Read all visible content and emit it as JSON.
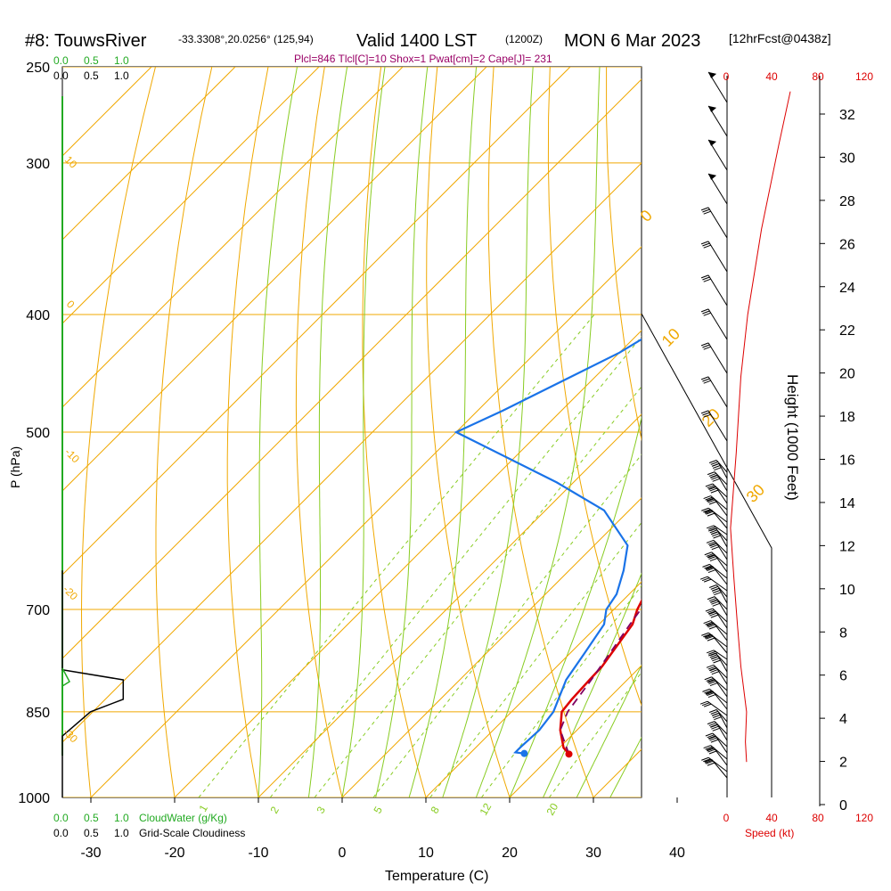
{
  "header": {
    "station": "#8: TouwsRiver",
    "coords": "-33.3308°,20.0256° (125,94)",
    "valid": "Valid 1400 LST",
    "zulu": "(1200Z)",
    "date": "MON 6 Mar 2023",
    "forecast": "[12hrFcst@0438z]",
    "indices": "Plcl=846 Tlcl[C]=10 Shox=1 Pwat[cm]=2 Cape[J]= 231"
  },
  "cloud_scale": {
    "water_ticks": [
      "0.0",
      "0.5",
      "1.0"
    ],
    "cloudiness_ticks": [
      "0.0",
      "0.5",
      "1.0"
    ],
    "water_label": "CloudWater (g/Kg)",
    "cloudiness_label": "Grid-Scale Cloudiness"
  },
  "speed_scale": {
    "ticks": [
      "0",
      "40",
      "80",
      "120"
    ],
    "label": "Speed (kt)"
  },
  "colors": {
    "temperature": "#dd0000",
    "dewpoint": "#1a73e8",
    "parcel": "#800060",
    "isotherm": "#f0a800",
    "dry_adiabat": "#f0a800",
    "moist_adiabat": "#88cc22",
    "mixing_ratio": "#88cc22",
    "cloud_water": "#22aa22",
    "speed": "#dd0000"
  },
  "chart_data": {
    "type": "line",
    "xlabel": "Temperature (C)",
    "ylabel": "P (hPa)",
    "y2label": "Height (1000 Feet)",
    "x_ticks": [
      -30,
      -20,
      -10,
      0,
      10,
      20,
      30,
      40
    ],
    "y_ticks": [
      250,
      300,
      400,
      500,
      700,
      850,
      1000
    ],
    "height_ticks": [
      0,
      2,
      4,
      6,
      8,
      10,
      12,
      14,
      16,
      18,
      20,
      22,
      24,
      26,
      28,
      30,
      32
    ],
    "isotherm_labels": [
      "10",
      "0",
      "-10",
      "-20",
      "-30",
      "0",
      "10",
      "20",
      "30"
    ],
    "mixing_ratio_labels": [
      "1",
      "2",
      "3",
      "5",
      "8",
      "12",
      "20"
    ],
    "series": [
      {
        "name": "Temperature",
        "points": [
          [
            21.9,
            921
          ],
          [
            20.5,
            910
          ],
          [
            18.0,
            880
          ],
          [
            16.0,
            850
          ],
          [
            15.7,
            830
          ],
          [
            15.5,
            800
          ],
          [
            15.4,
            780
          ],
          [
            14.0,
            720
          ],
          [
            12.8,
            700
          ],
          [
            10.5,
            650
          ],
          [
            9.7,
            620
          ],
          [
            9.4,
            600
          ],
          [
            8.8,
            580
          ],
          [
            7.6,
            550
          ],
          [
            6.1,
            520
          ],
          [
            4.4,
            490
          ],
          [
            2.6,
            460
          ],
          [
            0.3,
            430
          ],
          [
            -2.1,
            400
          ],
          [
            -4.3,
            370
          ],
          [
            -6.5,
            340
          ],
          [
            -9.0,
            310
          ],
          [
            -11.5,
            280
          ],
          [
            -14.0,
            255
          ]
        ]
      },
      {
        "name": "Dewpoint",
        "points": [
          [
            16.5,
            920
          ],
          [
            15.3,
            918
          ],
          [
            15.3,
            910
          ],
          [
            15.5,
            880
          ],
          [
            15.0,
            850
          ],
          [
            12.7,
            800
          ],
          [
            11.7,
            760
          ],
          [
            10.6,
            720
          ],
          [
            9.1,
            700
          ],
          [
            8.5,
            680
          ],
          [
            6.5,
            650
          ],
          [
            4.0,
            620
          ],
          [
            -3.0,
            580
          ],
          [
            -12.0,
            550
          ],
          [
            -30.0,
            500
          ],
          [
            -27.0,
            480
          ],
          [
            -20.0,
            430
          ],
          [
            -17.0,
            400
          ],
          [
            -22.0,
            360
          ],
          [
            -27.0,
            330
          ],
          [
            -36.0,
            310
          ],
          [
            -34.5,
            300
          ],
          [
            -32.0,
            280
          ],
          [
            -30.0,
            260
          ]
        ]
      },
      {
        "name": "Parcel",
        "points": [
          [
            21.9,
            921
          ],
          [
            18.0,
            880
          ],
          [
            16.7,
            850
          ],
          [
            15.7,
            800
          ],
          [
            13.7,
            720
          ],
          [
            11.9,
            650
          ],
          [
            9.9,
            600
          ],
          [
            7.4,
            550
          ],
          [
            4.6,
            500
          ],
          [
            1.5,
            450
          ],
          [
            -2.0,
            400
          ]
        ]
      }
    ],
    "cloud_profile": [
      [
        0.0,
        1000
      ],
      [
        0.0,
        890
      ],
      [
        0.3,
        850
      ],
      [
        0.65,
        830
      ],
      [
        0.65,
        800
      ],
      [
        0.0,
        785
      ],
      [
        0.0,
        650
      ]
    ],
    "wind_speed_profile": [
      [
        17,
        935
      ],
      [
        16,
        900
      ],
      [
        17,
        850
      ],
      [
        12,
        780
      ],
      [
        9,
        720
      ],
      [
        6,
        660
      ],
      [
        3,
        600
      ],
      [
        8,
        520
      ],
      [
        12,
        450
      ],
      [
        18,
        400
      ],
      [
        30,
        340
      ],
      [
        45,
        290
      ],
      [
        55,
        262
      ]
    ]
  }
}
